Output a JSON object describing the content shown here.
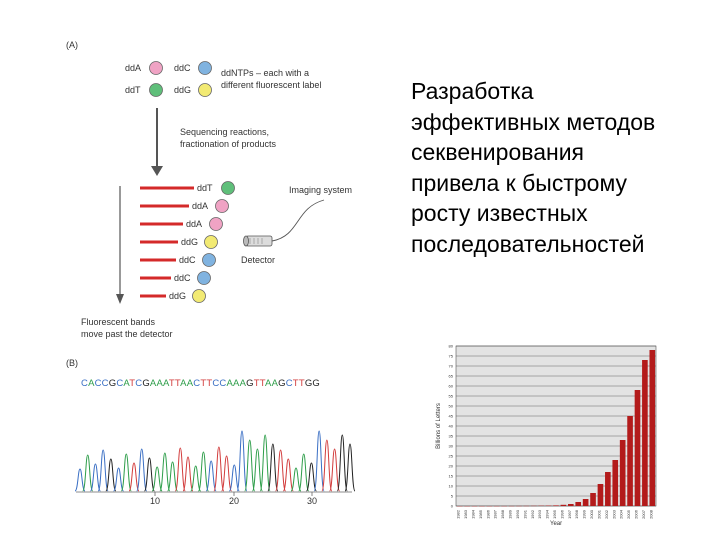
{
  "panel_a": {
    "label": "(A)",
    "legend": [
      {
        "name": "ddA",
        "color": "#f0a3c4"
      },
      {
        "name": "ddC",
        "color": "#80b3e0"
      },
      {
        "name": "ddT",
        "color": "#5fbf7a"
      },
      {
        "name": "ddG",
        "color": "#f2ea73"
      }
    ],
    "legend_caption_line1": "ddNTPs – each with a",
    "legend_caption_line2": "different fluorescent label",
    "reaction_line1": "Sequencing reactions,",
    "reaction_line2": "fractionation of products",
    "bands": [
      {
        "name": "ddT",
        "color": "#5fbf7a"
      },
      {
        "name": "ddA",
        "color": "#f0a3c4"
      },
      {
        "name": "ddA",
        "color": "#f0a3c4"
      },
      {
        "name": "ddG",
        "color": "#f2ea73"
      },
      {
        "name": "ddC",
        "color": "#80b3e0"
      },
      {
        "name": "ddC",
        "color": "#80b3e0"
      },
      {
        "name": "ddG",
        "color": "#f2ea73"
      }
    ],
    "imaging_label": "Imaging system",
    "detector_label": "Detector",
    "fluor_line1": "Fluorescent bands",
    "fluor_line2": "move past the detector"
  },
  "panel_b": {
    "label": "(B)",
    "sequence": "CACCGCATCGAAATTAACTTCCAAAGTTAAGCTTGG",
    "base_colors": {
      "A": "#2e9e4a",
      "C": "#3a6fc4",
      "G": "#222222",
      "T": "#d23c3c"
    },
    "axis_ticks": [
      "10",
      "20",
      "30"
    ]
  },
  "slide_text": [
    "Разработка",
    "эффективных методов",
    "секвенирования",
    "привела к быстрому",
    "росту известных",
    "последовательностей"
  ],
  "chart_data": {
    "type": "bar",
    "title": "",
    "xlabel": "Year",
    "ylabel": "Billions of Letters",
    "ylim": [
      0,
      80
    ],
    "yticks": [
      0,
      5,
      10,
      15,
      20,
      25,
      30,
      35,
      40,
      45,
      50,
      55,
      60,
      65,
      70,
      75,
      80
    ],
    "bar_color": "#b31b1b",
    "background": "#e3e3e3",
    "grid": true,
    "categories": [
      "1982",
      "1983",
      "1984",
      "1985",
      "1986",
      "1987",
      "1988",
      "1989",
      "1990",
      "1991",
      "1992",
      "1993",
      "1994",
      "1995",
      "1996",
      "1997",
      "1998",
      "1999",
      "2000",
      "2001",
      "2002",
      "2003",
      "2004",
      "2005",
      "2006",
      "2007",
      "2008"
    ],
    "values": [
      0.001,
      0.002,
      0.003,
      0.005,
      0.009,
      0.015,
      0.024,
      0.037,
      0.05,
      0.07,
      0.1,
      0.15,
      0.2,
      0.3,
      0.6,
      1.0,
      2.0,
      3.5,
      6.5,
      11,
      17,
      23,
      33,
      45,
      58,
      73,
      78
    ]
  }
}
